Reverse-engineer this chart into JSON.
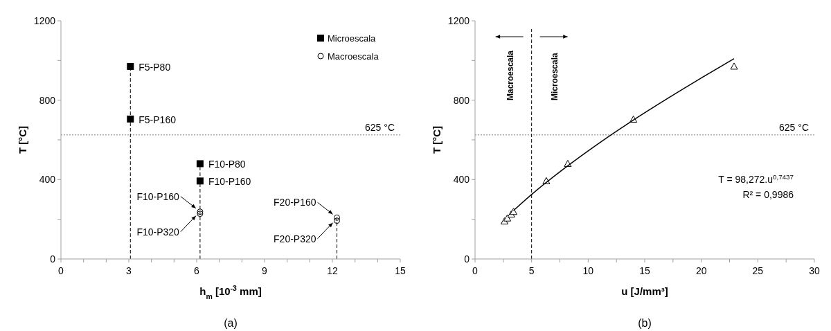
{
  "chart_data": [
    {
      "type": "scatter",
      "title": "(a)",
      "xlabel": "h$_{m}$ [10$^{-3}$ mm]",
      "ylabel": "T [°C]",
      "xlim": [
        0,
        15
      ],
      "ylim": [
        0,
        1200
      ],
      "xticks": [
        0,
        {
          "value": 1,
          "label": null
        },
        {
          "value": 2,
          "label": null
        },
        3,
        {
          "value": 4,
          "label": null
        },
        {
          "value": 5,
          "label": null
        },
        6,
        {
          "value": 7,
          "label": null
        },
        {
          "value": 8,
          "label": null
        },
        9,
        {
          "value": 10,
          "label": null
        },
        {
          "value": 11,
          "label": null
        },
        12,
        {
          "value": 13,
          "label": null
        },
        {
          "value": 14,
          "label": null
        },
        15
      ],
      "yticks": [
        0,
        {
          "value": 200,
          "label": null
        },
        400,
        {
          "value": 600,
          "label": null
        },
        800,
        {
          "value": 1000,
          "label": null
        },
        1200
      ],
      "grid": false,
      "legend": "top right",
      "series": [
        {
          "name": "Microescala",
          "color": "#000000",
          "marker": "square",
          "x": [
            3.07,
            3.07,
            6.15,
            6.15
          ],
          "values": [
            970,
            705,
            480,
            393
          ]
        },
        {
          "name": "Macroescala",
          "color": "#000000",
          "marker": "circle",
          "x": [
            6.15,
            6.15,
            12.2,
            12.2
          ],
          "values": [
            238,
            228,
            208,
            193
          ]
        }
      ],
      "ref_lines": [
        {
          "axis": "y",
          "value": 625,
          "label": "625 °C",
          "color": "#808080",
          "line_style": "dotted"
        },
        {
          "axis": "x",
          "value": 3.07,
          "color": "#000000",
          "line_style": "dashed"
        },
        {
          "axis": "x",
          "value": 6.15,
          "color": "#000000",
          "line_style": "dashed"
        },
        {
          "axis": "x",
          "value": 12.2,
          "color": "#000000",
          "line_style": "dashed"
        }
      ],
      "annotations": [
        {
          "text": "F5-P80",
          "x": 3.07,
          "y": 970
        },
        {
          "text": "F5-P160",
          "x": 3.07,
          "y": 705
        },
        {
          "text": "F10-P80",
          "x": 6.15,
          "y": 480
        },
        {
          "text": "F10-P160",
          "x": 6.15,
          "y": 393
        },
        {
          "text": "F10-P160",
          "x": 6.15,
          "y": 238
        },
        {
          "text": "F10-P320",
          "x": 6.15,
          "y": 228
        },
        {
          "text": "F20-P160",
          "x": 12.2,
          "y": 208
        },
        {
          "text": "F20-P320",
          "x": 12.2,
          "y": 193
        }
      ]
    },
    {
      "type": "scatter",
      "title": "(b)",
      "xlabel": "u [J/mm³]",
      "ylabel": "T [°C]",
      "xlim": [
        0,
        30
      ],
      "ylim": [
        0,
        1200
      ],
      "xticks": [
        0,
        {
          "value": 2.5,
          "label": null
        },
        5,
        {
          "value": 7.5,
          "label": null
        },
        10,
        {
          "value": 12.5,
          "label": null
        },
        15,
        {
          "value": 17.5,
          "label": null
        },
        20,
        {
          "value": 22.5,
          "label": null
        },
        25,
        {
          "value": 27.5,
          "label": null
        },
        30
      ],
      "yticks": [
        0,
        {
          "value": 200,
          "label": null
        },
        400,
        {
          "value": 600,
          "label": null
        },
        800,
        {
          "value": 1000,
          "label": null
        },
        1200
      ],
      "grid": false,
      "series": [
        {
          "color": "#000000",
          "marker": "triangle",
          "x": [
            2.6,
            2.85,
            3.2,
            3.4,
            6.3,
            8.2,
            14.0,
            22.9
          ],
          "values": [
            190,
            205,
            225,
            238,
            393,
            480,
            703,
            970
          ]
        },
        {
          "type": "line",
          "color": "#000000",
          "marker": "none",
          "line_style": "solid",
          "x": [
            3.4,
            5,
            8,
            11,
            14,
            17,
            20,
            22.9
          ],
          "values": [
            244,
            325,
            461,
            585,
            700,
            808,
            912,
            1009
          ]
        }
      ],
      "ref_lines": [
        {
          "axis": "y",
          "value": 625,
          "label": "625 °C",
          "color": "#808080",
          "line_style": "dotted"
        },
        {
          "axis": "x",
          "value": 5,
          "color": "#000000",
          "line_style": "dashed"
        }
      ],
      "annotations": [
        "Macroescala",
        "Microescala",
        "T = 98,272.u$^{0,7437}$",
        "R² = 0,9986"
      ]
    }
  ]
}
